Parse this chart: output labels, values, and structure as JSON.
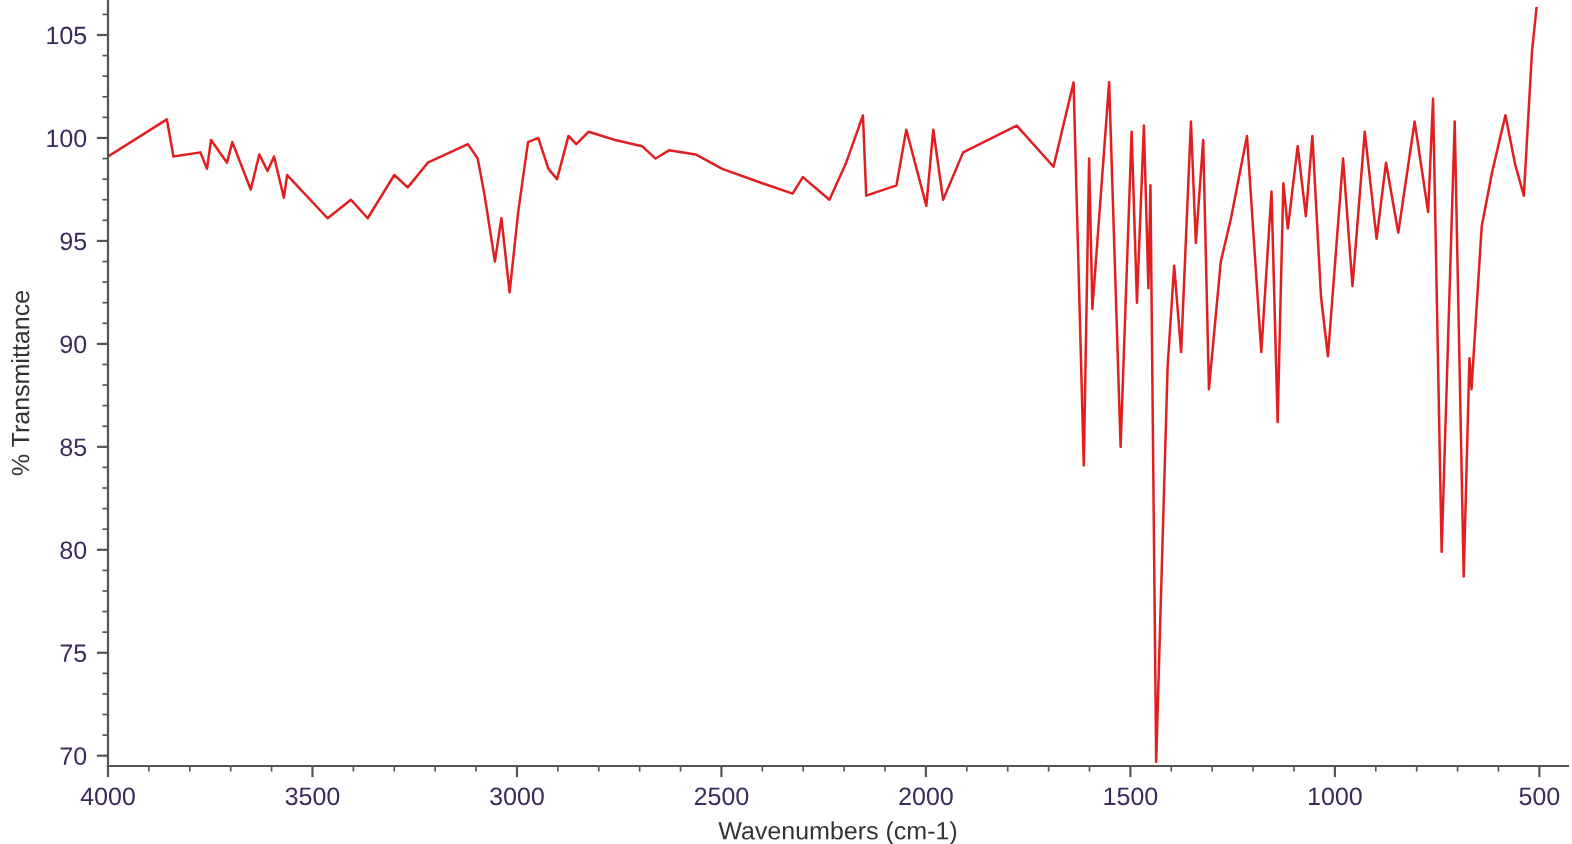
{
  "chart_data": {
    "type": "line",
    "xlabel": "Wavenumbers (cm-1)",
    "ylabel": "% Transmittance",
    "xlim": [
      4000,
      430
    ],
    "ylim": [
      69.5,
      106.7
    ],
    "xticks": [
      4000,
      3500,
      3000,
      2500,
      2000,
      1500,
      1000,
      500
    ],
    "yticks": [
      70,
      75,
      80,
      85,
      90,
      95,
      100,
      105
    ],
    "grid": false,
    "legend": false,
    "marker": "none",
    "line_style": "solid",
    "series": [
      {
        "color": "#e02020",
        "x": [
          4000,
          3856,
          3840,
          3774,
          3758,
          3748,
          3709,
          3696,
          3651,
          3630,
          3610,
          3594,
          3570,
          3562,
          3463,
          3406,
          3365,
          3300,
          3267,
          3218,
          3120,
          3096,
          3079,
          3054,
          3038,
          3018,
          2997,
          2973,
          2948,
          2923,
          2902,
          2874,
          2855,
          2825,
          2760,
          2694,
          2661,
          2628,
          2563,
          2498,
          2400,
          2326,
          2301,
          2236,
          2195,
          2154,
          2146,
          2072,
          2048,
          1999,
          1982,
          1958,
          1909,
          1778,
          1688,
          1639,
          1614,
          1601,
          1593,
          1552,
          1524,
          1497,
          1484,
          1467,
          1456,
          1451,
          1437,
          1409,
          1393,
          1376,
          1352,
          1340,
          1322,
          1308,
          1279,
          1254,
          1215,
          1180,
          1155,
          1140,
          1126,
          1115,
          1091,
          1071,
          1055,
          1034,
          1017,
          980,
          957,
          927,
          898,
          875,
          845,
          805,
          772,
          760,
          739,
          707,
          685,
          671,
          666,
          641,
          616,
          583,
          559,
          538,
          518,
          507
        ],
        "values": [
          99.1,
          100.9,
          99.1,
          99.3,
          98.5,
          99.9,
          98.8,
          99.8,
          97.5,
          99.2,
          98.4,
          99.1,
          97.1,
          98.2,
          96.1,
          97.0,
          96.1,
          98.2,
          97.6,
          98.8,
          99.7,
          99.0,
          97.2,
          94.0,
          96.1,
          92.5,
          96.4,
          99.8,
          100.0,
          98.5,
          98.0,
          100.1,
          99.7,
          100.3,
          99.9,
          99.6,
          99.0,
          99.4,
          99.2,
          98.5,
          97.8,
          97.3,
          98.1,
          97.0,
          98.8,
          101.1,
          97.2,
          97.7,
          100.4,
          96.7,
          100.4,
          97.0,
          99.3,
          100.6,
          98.6,
          102.7,
          84.1,
          99.0,
          91.7,
          102.7,
          85.0,
          100.3,
          92.0,
          100.6,
          92.7,
          97.7,
          69.7,
          88.9,
          93.8,
          89.6,
          100.8,
          94.9,
          99.9,
          87.8,
          94.0,
          96.1,
          100.1,
          89.6,
          97.4,
          86.2,
          97.8,
          95.6,
          99.6,
          96.2,
          100.1,
          92.3,
          89.4,
          99.0,
          92.8,
          100.3,
          95.1,
          98.8,
          95.4,
          100.8,
          96.4,
          101.9,
          79.9,
          100.8,
          78.7,
          89.3,
          87.8,
          95.7,
          98.3,
          101.1,
          98.7,
          97.2,
          104.2,
          106.3
        ]
      }
    ]
  }
}
